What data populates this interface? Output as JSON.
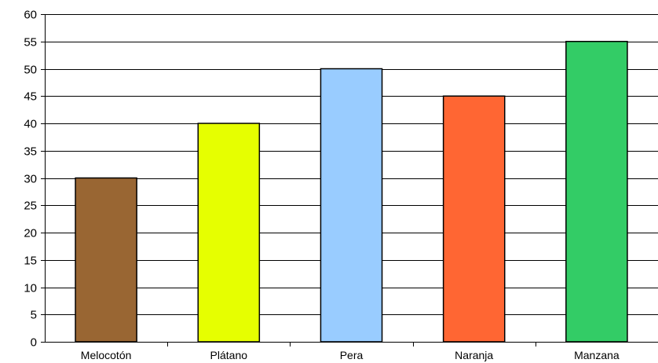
{
  "chart_data": {
    "type": "bar",
    "title": "",
    "xlabel": "",
    "ylabel": "",
    "categories": [
      "Melocotón",
      "Plátano",
      "Pera",
      "Naranja",
      "Manzana"
    ],
    "values": [
      30,
      40,
      50,
      45,
      55
    ],
    "colors": [
      "#996633",
      "#E6FF00",
      "#99CCFF",
      "#FF6633",
      "#33CC66"
    ],
    "ylim": [
      0,
      60
    ],
    "ytick_step": 5,
    "grid": true,
    "legend": "none"
  }
}
